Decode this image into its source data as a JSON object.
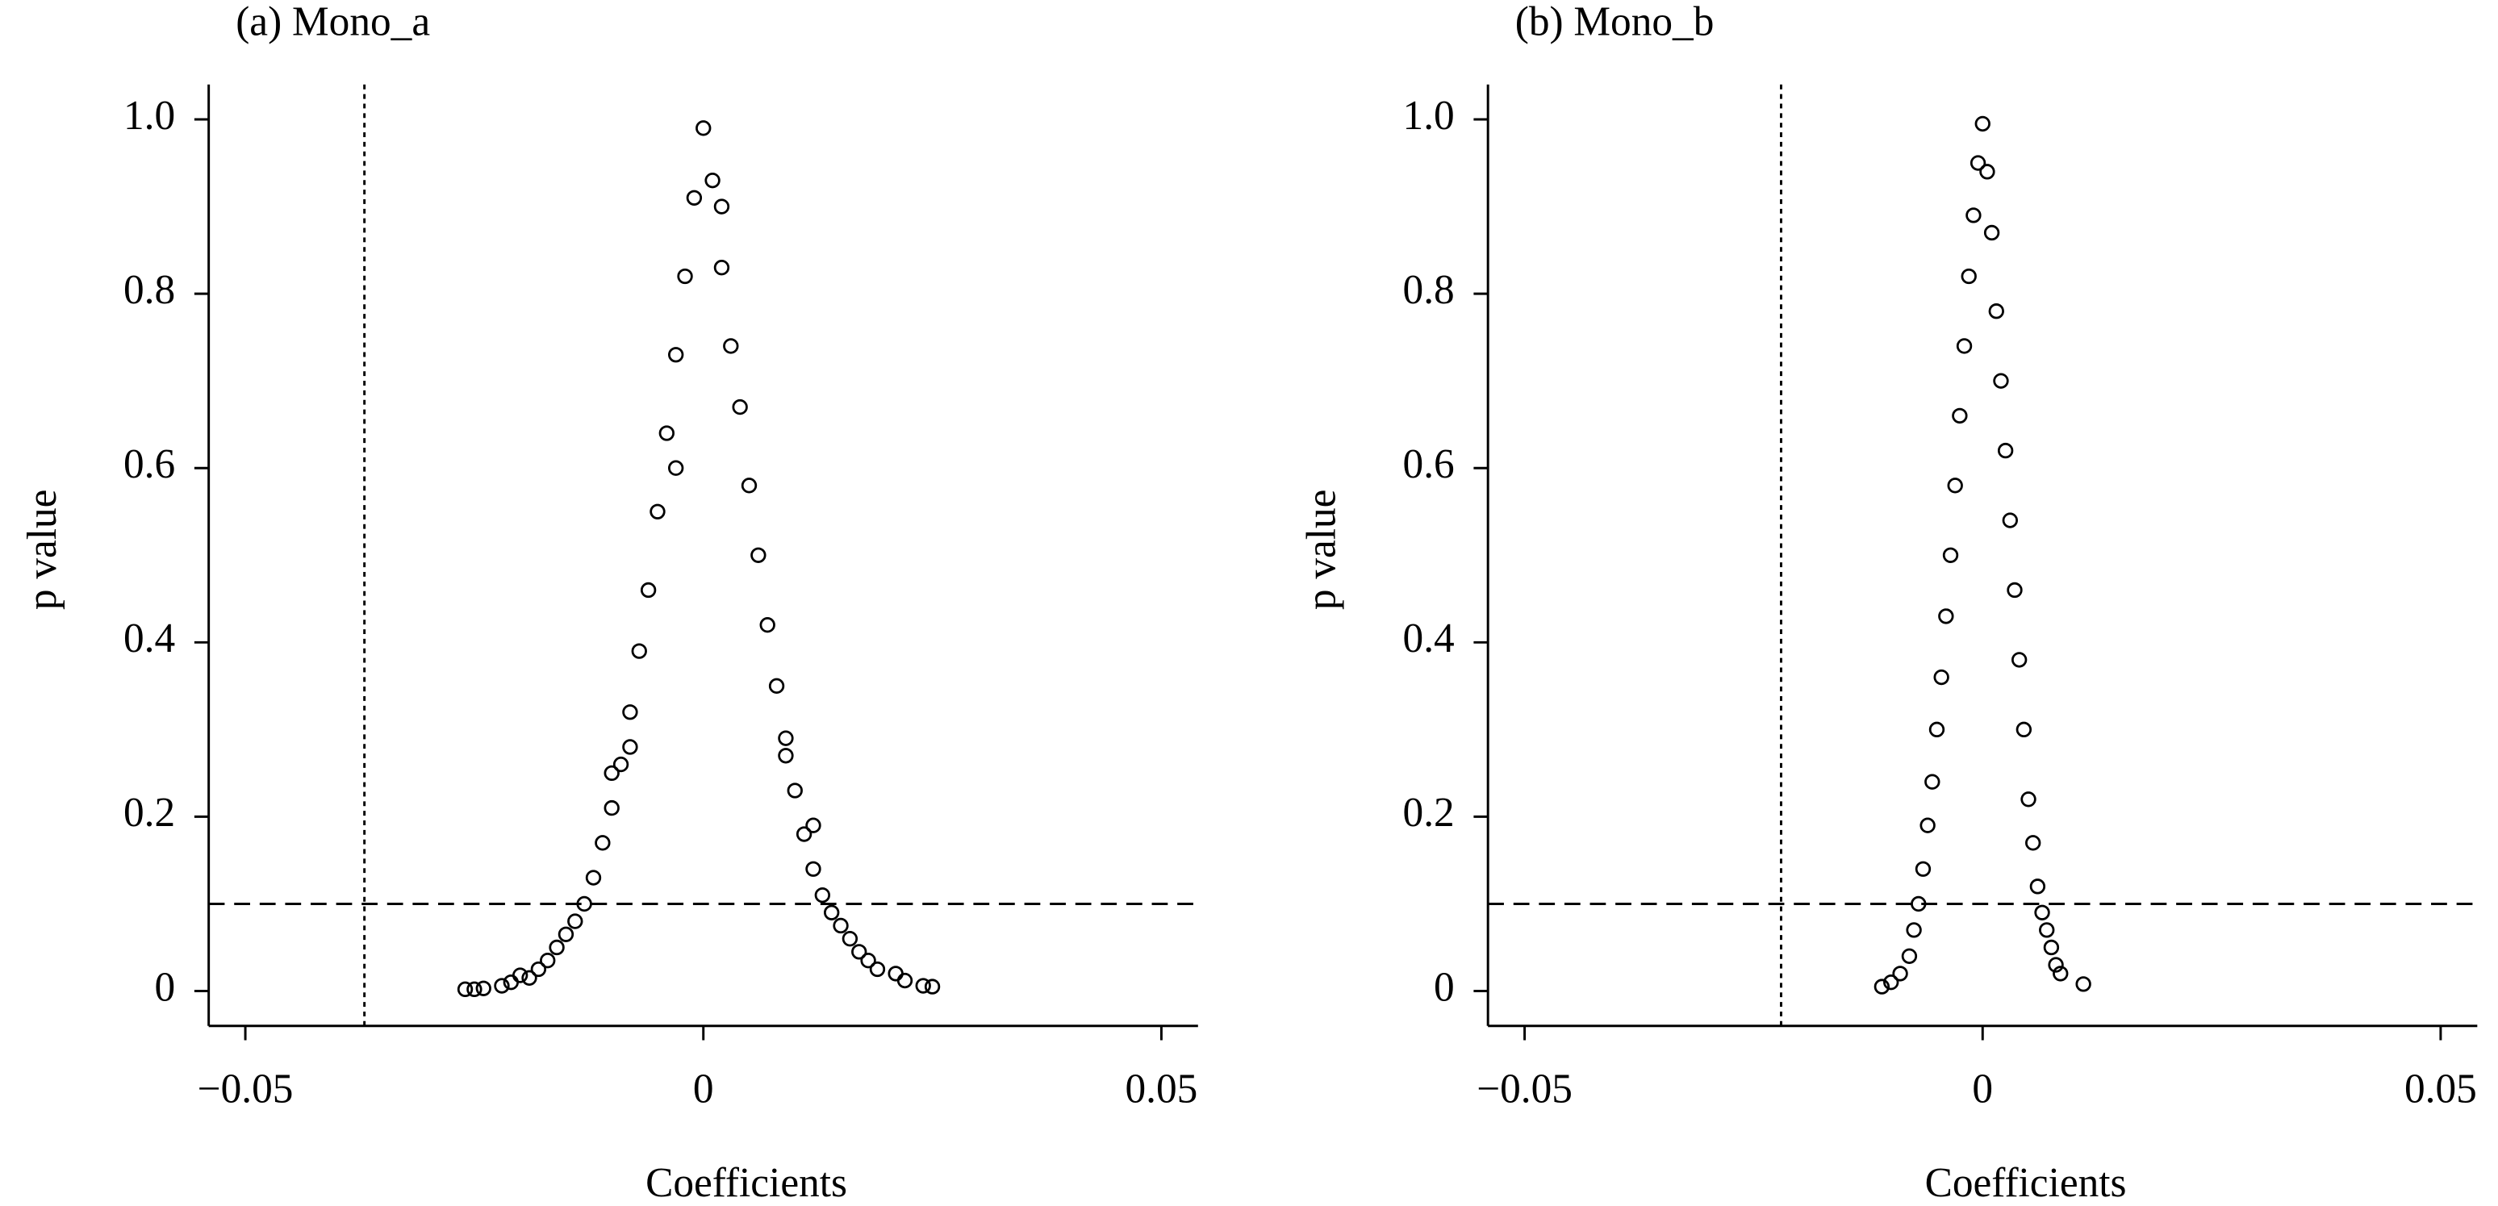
{
  "chart_data": [
    {
      "type": "scatter",
      "title": "(a) Mono_a",
      "xlabel": "Coefficients",
      "ylabel": "p value",
      "color": "#000000",
      "x": [
        -0.026,
        -0.025,
        -0.024,
        -0.022,
        -0.021,
        -0.02,
        -0.019,
        -0.018,
        -0.017,
        -0.016,
        -0.015,
        -0.014,
        -0.013,
        -0.012,
        -0.011,
        -0.01,
        -0.009,
        -0.008,
        -0.007,
        -0.006,
        -0.005,
        -0.004,
        -0.003,
        -0.002,
        -0.001,
        0,
        0.001,
        0.002,
        0.003,
        0.004,
        0.005,
        0.006,
        0.007,
        0.008,
        0.009,
        0.01,
        0.011,
        0.012,
        0.013,
        0.014,
        0.015,
        0.016,
        0.017,
        0.018,
        0.019,
        0.021,
        0.022,
        0.024,
        0.025,
        -0.008,
        -0.01,
        0.009,
        0.012,
        -0.003,
        0.002
      ],
      "values": [
        0.002,
        0.002,
        0.003,
        0.006,
        0.01,
        0.018,
        0.015,
        0.025,
        0.035,
        0.05,
        0.065,
        0.08,
        0.1,
        0.13,
        0.17,
        0.21,
        0.26,
        0.32,
        0.39,
        0.46,
        0.55,
        0.64,
        0.73,
        0.82,
        0.91,
        0.99,
        0.93,
        0.83,
        0.74,
        0.67,
        0.58,
        0.5,
        0.42,
        0.35,
        0.29,
        0.23,
        0.18,
        0.14,
        0.11,
        0.09,
        0.075,
        0.06,
        0.045,
        0.035,
        0.025,
        0.02,
        0.012,
        0.006,
        0.005,
        0.28,
        0.25,
        0.27,
        0.19,
        0.6,
        0.9
      ],
      "xlim": [
        -0.054,
        0.054
      ],
      "ylim": [
        -0.04,
        1.04
      ],
      "xticks": [
        {
          "value": -0.05,
          "label": "−0.05"
        },
        0,
        0.05
      ],
      "yticks": [
        0,
        0.2,
        0.4,
        0.6,
        0.8,
        {
          "value": 1,
          "label": "1.0"
        }
      ],
      "hline": 0.1,
      "vline": -0.037
    },
    {
      "type": "scatter",
      "title": "(b) Mono_b",
      "xlabel": "Coefficients",
      "ylabel": "p value",
      "color": "#000000",
      "x": [
        -0.011,
        -0.01,
        -0.009,
        -0.008,
        -0.0075,
        -0.007,
        -0.0065,
        -0.006,
        -0.0055,
        -0.005,
        -0.0045,
        -0.004,
        -0.0035,
        -0.003,
        -0.0025,
        -0.002,
        -0.0015,
        -0.001,
        -0.0005,
        0,
        0.0005,
        0.001,
        0.0015,
        0.002,
        0.0025,
        0.003,
        0.0035,
        0.004,
        0.0045,
        0.005,
        0.0055,
        0.006,
        0.0065,
        0.007,
        0.0075,
        0.008,
        0.0085,
        0.011
      ],
      "values": [
        0.005,
        0.01,
        0.02,
        0.04,
        0.07,
        0.1,
        0.14,
        0.19,
        0.24,
        0.3,
        0.36,
        0.43,
        0.5,
        0.58,
        0.66,
        0.74,
        0.82,
        0.89,
        0.95,
        0.995,
        0.94,
        0.87,
        0.78,
        0.7,
        0.62,
        0.54,
        0.46,
        0.38,
        0.3,
        0.22,
        0.17,
        0.12,
        0.09,
        0.07,
        0.05,
        0.03,
        0.02,
        0.008
      ],
      "xlim": [
        -0.054,
        0.054
      ],
      "ylim": [
        -0.04,
        1.04
      ],
      "xticks": [
        {
          "value": -0.05,
          "label": "−0.05"
        },
        0,
        0.05
      ],
      "yticks": [
        0,
        0.2,
        0.4,
        0.6,
        0.8,
        {
          "value": 1,
          "label": "1.0"
        }
      ],
      "hline": 0.1,
      "vline": -0.022
    }
  ]
}
